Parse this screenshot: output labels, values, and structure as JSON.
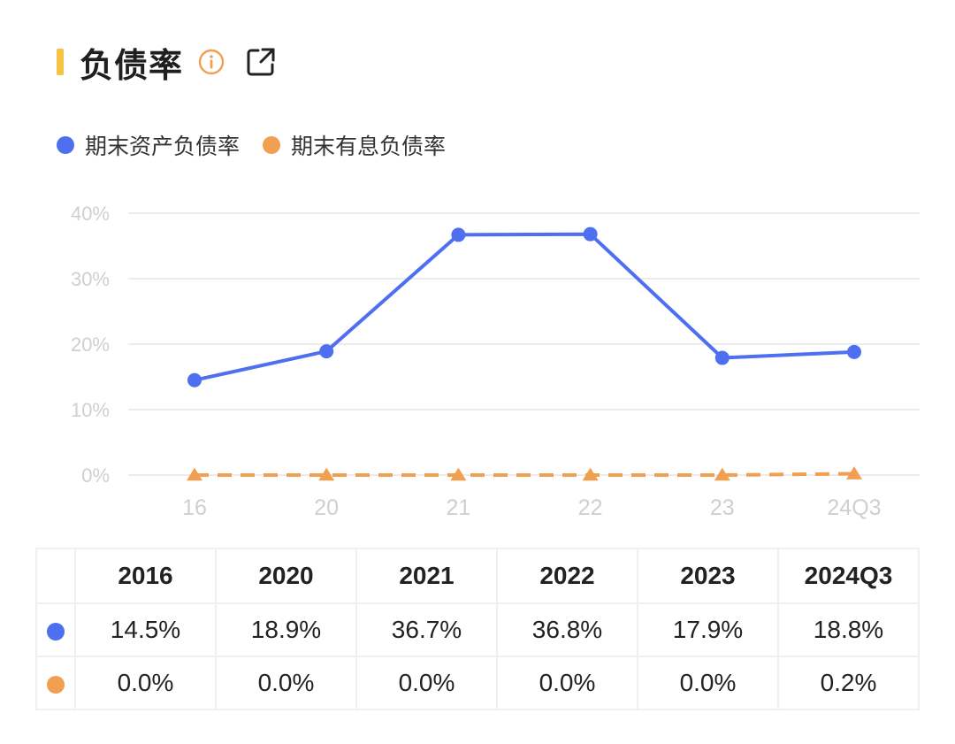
{
  "header": {
    "title": "负债率",
    "accent_color": "#f5c242",
    "info_icon": "info-circle-icon",
    "share_icon": "external-link-icon"
  },
  "chart_data": {
    "type": "line",
    "categories": [
      "16",
      "20",
      "21",
      "22",
      "23",
      "24Q3"
    ],
    "y_ticks": [
      "0%",
      "10%",
      "20%",
      "30%",
      "40%"
    ],
    "ylim": [
      0,
      40
    ],
    "grid": true,
    "legend_position": "top-left",
    "series": [
      {
        "name": "期末资产负债率",
        "color": "#4d6ff0",
        "marker": "circle",
        "line": "solid",
        "values": [
          14.5,
          18.9,
          36.7,
          36.8,
          17.9,
          18.8
        ]
      },
      {
        "name": "期末有息负债率",
        "color": "#f0a050",
        "marker": "triangle",
        "line": "dashed",
        "values": [
          0.0,
          0.0,
          0.0,
          0.0,
          0.0,
          0.2
        ]
      }
    ]
  },
  "table": {
    "columns": [
      "2016",
      "2020",
      "2021",
      "2022",
      "2023",
      "2024Q3"
    ],
    "rows": [
      {
        "color": "#4d6ff0",
        "cells": [
          "14.5%",
          "18.9%",
          "36.7%",
          "36.8%",
          "17.9%",
          "18.8%"
        ]
      },
      {
        "color": "#f0a050",
        "cells": [
          "0.0%",
          "0.0%",
          "0.0%",
          "0.0%",
          "0.0%",
          "0.2%"
        ]
      }
    ]
  }
}
